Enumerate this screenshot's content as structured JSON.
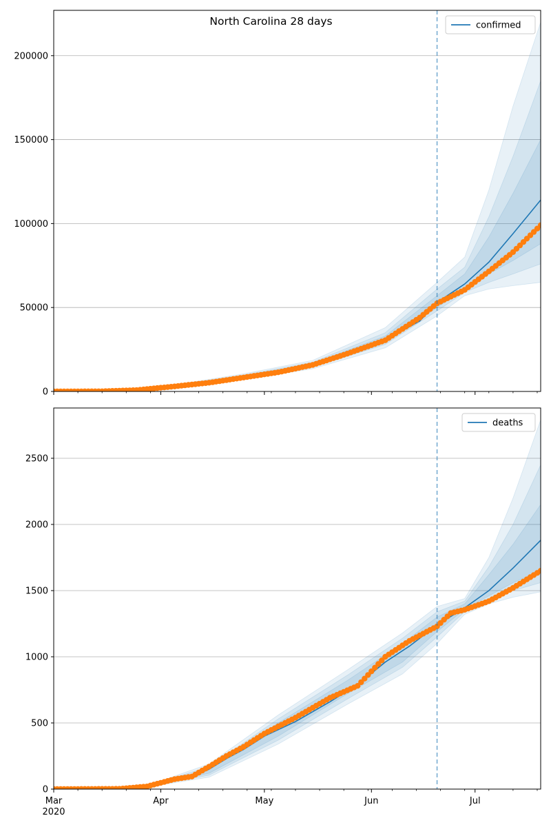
{
  "chart_data": [
    {
      "type": "line",
      "title": "North Carolina 28 days",
      "xlabel": "",
      "ylabel": "",
      "xlim": [
        "2020-03-01",
        "2020-07-20"
      ],
      "ylim": [
        0,
        227000
      ],
      "yticks": [
        0,
        50000,
        100000,
        150000,
        200000
      ],
      "grid": "horizontal",
      "legend_placement": "top-right",
      "forecast_start": "2020-06-20",
      "colors": {
        "line": "#1f77b4",
        "band": "#1f77b4",
        "observed": "#ff7f0e",
        "vline": "#1f77b4"
      },
      "series": [
        {
          "name": "confirmed",
          "style": "line",
          "x": [
            "2020-03-01",
            "2020-03-15",
            "2020-03-25",
            "2020-04-05",
            "2020-04-15",
            "2020-04-25",
            "2020-05-05",
            "2020-05-15",
            "2020-05-25",
            "2020-06-05",
            "2020-06-15",
            "2020-06-20",
            "2020-06-28",
            "2020-07-05",
            "2020-07-12",
            "2020-07-20"
          ],
          "values": [
            0,
            100,
            800,
            3000,
            5500,
            8500,
            11500,
            16000,
            22000,
            30500,
            42000,
            53000,
            64000,
            77000,
            94000,
            114000
          ]
        },
        {
          "name": "",
          "style": "markers",
          "x": [
            "2020-03-01",
            "2020-03-15",
            "2020-03-25",
            "2020-04-05",
            "2020-04-15",
            "2020-04-25",
            "2020-05-05",
            "2020-05-15",
            "2020-05-25",
            "2020-06-05",
            "2020-06-15",
            "2020-06-20",
            "2020-06-28",
            "2020-07-05",
            "2020-07-12",
            "2020-07-20"
          ],
          "values": [
            0,
            100,
            800,
            3000,
            5200,
            8300,
            11400,
            15800,
            22500,
            30500,
            44000,
            52500,
            60500,
            71500,
            83000,
            99000
          ]
        }
      ],
      "bands": {
        "x": [
          "2020-03-01",
          "2020-04-01",
          "2020-04-25",
          "2020-05-15",
          "2020-06-05",
          "2020-06-20",
          "2020-06-28",
          "2020-07-05",
          "2020-07-12",
          "2020-07-20"
        ],
        "levels": [
          {
            "lower": [
              0,
              2000,
              7000,
              13500,
              26000,
              45000,
              57000,
              61000,
              63000,
              65000
            ],
            "upper": [
              0,
              2600,
              10500,
              18500,
              38000,
              65000,
              80000,
              120000,
              170000,
              220000
            ]
          },
          {
            "lower": [
              0,
              2200,
              7600,
              14500,
              28000,
              48000,
              59000,
              65000,
              70000,
              76000
            ],
            "upper": [
              0,
              2500,
              9800,
              17500,
              35000,
              61000,
              74000,
              104000,
              140000,
              185000
            ]
          },
          {
            "lower": [
              0,
              2300,
              8000,
              15000,
              29000,
              50000,
              61000,
              70000,
              78000,
              88000
            ],
            "upper": [
              0,
              2400,
              9300,
              16800,
              33000,
              57000,
              70000,
              92000,
              118000,
              150000
            ]
          }
        ]
      }
    },
    {
      "type": "line",
      "title": "",
      "xlabel": "",
      "ylabel": "",
      "xlim": [
        "2020-03-01",
        "2020-07-20"
      ],
      "ylim": [
        0,
        2880
      ],
      "yticks": [
        0,
        500,
        1000,
        1500,
        2000,
        2500
      ],
      "xticks": [
        {
          "date": "2020-03-01",
          "label": "Mar",
          "sublabel": "2020"
        },
        {
          "date": "2020-04-01",
          "label": "Apr",
          "sublabel": ""
        },
        {
          "date": "2020-05-01",
          "label": "May",
          "sublabel": ""
        },
        {
          "date": "2020-06-01",
          "label": "Jun",
          "sublabel": ""
        },
        {
          "date": "2020-07-01",
          "label": "Jul",
          "sublabel": ""
        }
      ],
      "grid": "horizontal",
      "legend_placement": "top-right",
      "forecast_start": "2020-06-20",
      "colors": {
        "line": "#1f77b4",
        "band": "#1f77b4",
        "observed": "#ff7f0e",
        "vline": "#1f77b4"
      },
      "series": [
        {
          "name": "deaths",
          "style": "line",
          "x": [
            "2020-03-01",
            "2020-03-20",
            "2020-03-28",
            "2020-04-05",
            "2020-04-10",
            "2020-04-15",
            "2020-04-20",
            "2020-04-25",
            "2020-05-01",
            "2020-05-10",
            "2020-05-20",
            "2020-05-28",
            "2020-06-05",
            "2020-06-12",
            "2020-06-20",
            "2020-06-28",
            "2020-07-05",
            "2020-07-12",
            "2020-07-20"
          ],
          "values": [
            0,
            2,
            20,
            75,
            95,
            150,
            230,
            300,
            400,
            510,
            660,
            790,
            960,
            1080,
            1240,
            1370,
            1500,
            1670,
            1880
          ]
        },
        {
          "name": "",
          "style": "markers",
          "x": [
            "2020-03-01",
            "2020-03-20",
            "2020-03-28",
            "2020-04-05",
            "2020-04-10",
            "2020-04-15",
            "2020-04-20",
            "2020-04-25",
            "2020-05-01",
            "2020-05-10",
            "2020-05-20",
            "2020-05-28",
            "2020-06-05",
            "2020-06-12",
            "2020-06-20",
            "2020-06-24",
            "2020-06-28",
            "2020-07-05",
            "2020-07-12",
            "2020-07-20"
          ],
          "values": [
            0,
            2,
            20,
            75,
            95,
            170,
            250,
            320,
            420,
            540,
            690,
            780,
            1000,
            1120,
            1230,
            1330,
            1355,
            1420,
            1520,
            1650
          ]
        }
      ],
      "bands": {
        "x": [
          "2020-03-01",
          "2020-03-28",
          "2020-04-15",
          "2020-05-05",
          "2020-05-25",
          "2020-06-10",
          "2020-06-20",
          "2020-06-28",
          "2020-07-05",
          "2020-07-12",
          "2020-07-20"
        ],
        "levels": [
          {
            "lower": [
              0,
              15,
              90,
              340,
              640,
              870,
              1100,
              1320,
              1400,
              1450,
              1490
            ],
            "upper": [
              0,
              25,
              190,
              560,
              900,
              1180,
              1380,
              1440,
              1750,
              2200,
              2790
            ]
          },
          {
            "lower": [
              0,
              17,
              105,
              370,
              680,
              920,
              1150,
              1340,
              1430,
              1500,
              1560
            ],
            "upper": [
              0,
              23,
              170,
              530,
              860,
              1140,
              1340,
              1420,
              1680,
              2000,
              2450
            ]
          },
          {
            "lower": [
              0,
              19,
              120,
              400,
              720,
              960,
              1190,
              1360,
              1460,
              1560,
              1650
            ],
            "upper": [
              0,
              21,
              150,
              500,
              820,
              1100,
              1300,
              1400,
              1620,
              1850,
              2150
            ]
          }
        ]
      }
    }
  ]
}
